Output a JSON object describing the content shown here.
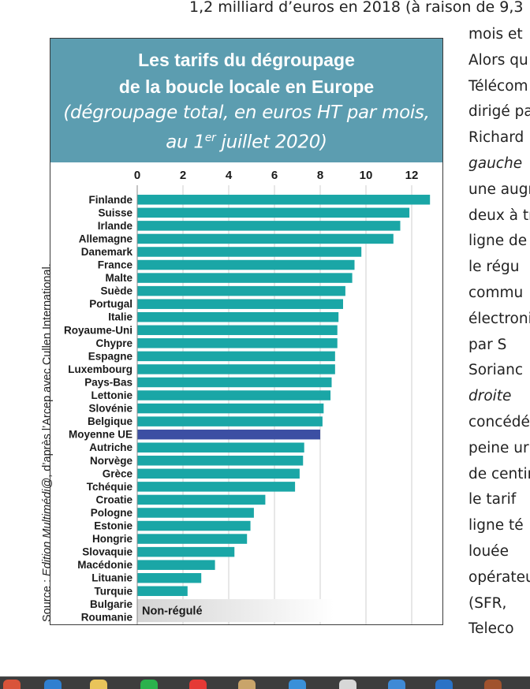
{
  "article": {
    "top_line": "1,2 milliard d’euros en 2018 (à raison de 9,3",
    "right_column": [
      {
        "text": "mois et",
        "italic": false
      },
      {
        "text": "Alors qu",
        "italic": false
      },
      {
        "text": "Télécom",
        "italic": false
      },
      {
        "text": "dirigé pa",
        "italic": false
      },
      {
        "text": "Richard",
        "italic": false
      },
      {
        "text": "gauche",
        "italic": true
      },
      {
        "text": "une augn",
        "italic": false
      },
      {
        "text": "deux à tr",
        "italic": false
      },
      {
        "text": "ligne de",
        "italic": false
      },
      {
        "text": "le régu",
        "italic": false
      },
      {
        "text": "commu",
        "italic": false
      },
      {
        "text": "électroni",
        "italic": false
      },
      {
        "text": "par S",
        "italic": false
      },
      {
        "text": "Sorianc",
        "italic": false
      },
      {
        "text": "droite",
        "italic": true
      },
      {
        "text": "concédé",
        "italic": false
      },
      {
        "text": "peine ur",
        "italic": false
      },
      {
        "text": "de centir",
        "italic": false
      },
      {
        "text": "le tarif",
        "italic": false
      },
      {
        "text": "ligne té",
        "italic": false
      },
      {
        "text": "louée",
        "italic": false
      },
      {
        "text": "opérateu",
        "italic": false
      },
      {
        "text": "(SFR,",
        "italic": false
      },
      {
        "text": "Teleco",
        "italic": false
      }
    ]
  },
  "chart_header": {
    "title_line1": "Les tarifs du dégroupage",
    "title_line2": "de la boucle locale en Europe",
    "subtitle_line1": "(dégroupage total, en euros HT par mois,",
    "subtitle_line2_pre": "au 1",
    "subtitle_line2_sup": "er",
    "subtitle_line2_post": " juillet 2020)"
  },
  "source": {
    "prefix": "Source : ",
    "em": "Edition Multimédi@",
    "suffix": ", d’après l’Arcep avec Cullen International."
  },
  "chart_data": {
    "type": "bar",
    "orientation": "horizontal",
    "xlim": [
      0,
      13
    ],
    "ticks": [
      0,
      2,
      4,
      6,
      8,
      10,
      12
    ],
    "grid": true,
    "colors": {
      "bar": "#1aa6a6",
      "highlight": "#3c4fa3"
    },
    "categories": [
      "Finlande",
      "Suisse",
      "Irlande",
      "Allemagne",
      "Danemark",
      "France",
      "Malte",
      "Suède",
      "Portugal",
      "Italie",
      "Royaume-Uni",
      "Chypre",
      "Espagne",
      "Luxembourg",
      "Pays-Bas",
      "Lettonie",
      "Slovénie",
      "Belgique",
      "Moyenne UE",
      "Autriche",
      "Norvège",
      "Grèce",
      "Tchéquie",
      "Croatie",
      "Pologne",
      "Estonie",
      "Hongrie",
      "Slovaquie",
      "Macédonie",
      "Lituanie",
      "Turquie",
      "Bulgarie",
      "Roumanie"
    ],
    "values": [
      12.8,
      11.9,
      11.5,
      11.2,
      9.8,
      9.5,
      9.4,
      9.1,
      9.0,
      8.8,
      8.75,
      8.75,
      8.65,
      8.65,
      8.5,
      8.45,
      8.15,
      8.1,
      8.0,
      7.3,
      7.25,
      7.1,
      6.9,
      5.6,
      5.1,
      4.95,
      4.8,
      4.25,
      3.4,
      2.8,
      2.2,
      null,
      null
    ],
    "highlight": "Moyenne UE",
    "unregulated_label": "Non-régulé",
    "unregulated_categories": [
      "Bulgarie",
      "Roumanie"
    ]
  }
}
